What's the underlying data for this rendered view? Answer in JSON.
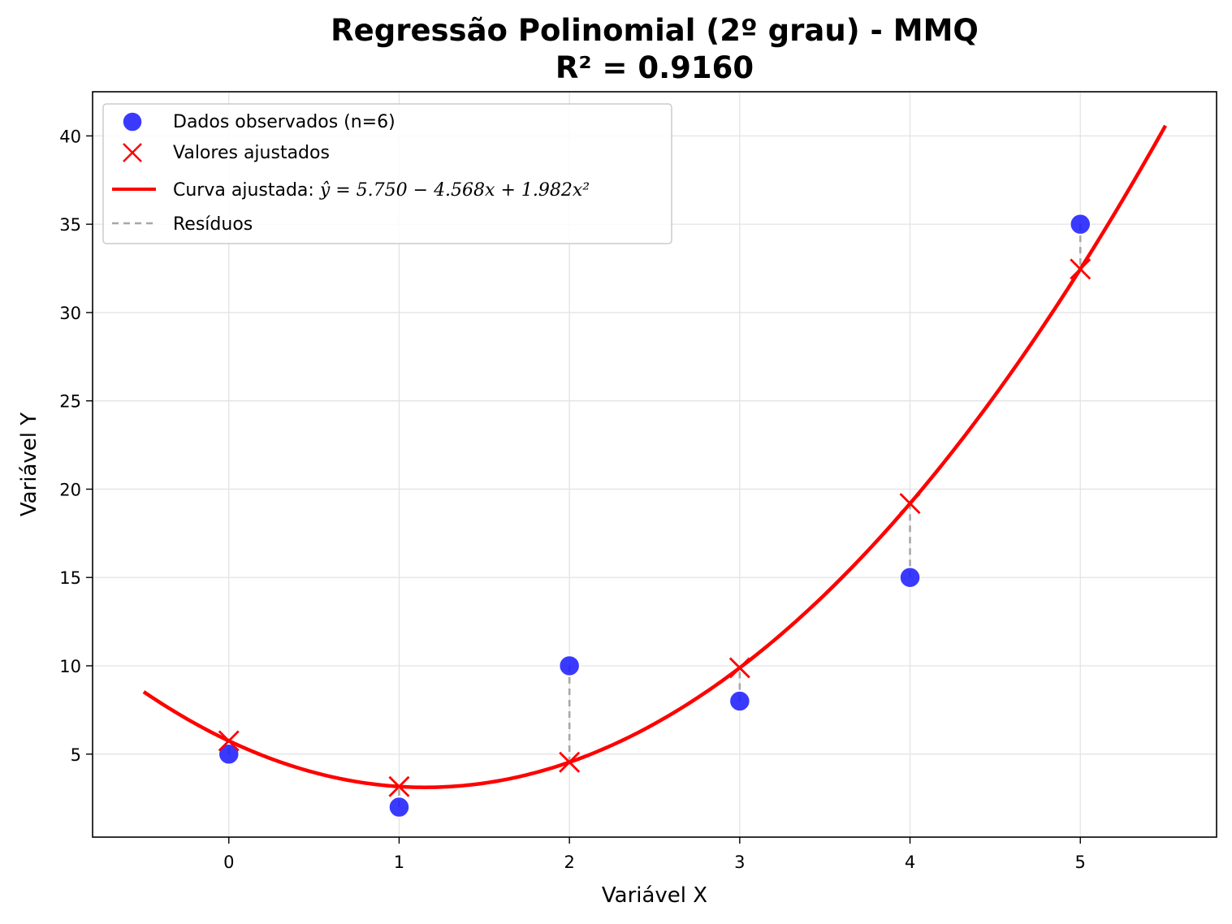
{
  "chart_data": {
    "type": "scatter",
    "title": "Regressão Polinomial (2º grau) - MMQ",
    "subtitle": "R² = 0.9160",
    "xlabel": "Variável X",
    "ylabel": "Variável Y",
    "xlim": [
      -0.8,
      5.8
    ],
    "ylim": [
      0.3,
      42.5
    ],
    "xticks": [
      0,
      1,
      2,
      3,
      4,
      5
    ],
    "yticks": [
      5,
      10,
      15,
      20,
      25,
      30,
      35,
      40
    ],
    "grid": true,
    "legend_position": "upper-left",
    "observed": {
      "name": "Dados observados (n=6)",
      "color": "#1f1fff",
      "x": [
        0,
        1,
        2,
        3,
        4,
        5
      ],
      "y": [
        5,
        2,
        10,
        8,
        15,
        35
      ]
    },
    "fitted": {
      "name": "Valores ajustados",
      "color": "#ff0000",
      "x": [
        0,
        1,
        2,
        3,
        4,
        5
      ],
      "y": [
        5.75,
        3.164,
        4.542,
        9.884,
        19.19,
        32.46
      ]
    },
    "curve": {
      "name_prefix": "Curva ajustada: ",
      "equation": "ŷ = 5.750 − 4.568x + 1.982x²",
      "color": "#ff0000",
      "coefficients": [
        5.75,
        -4.568,
        1.982
      ],
      "x_range": [
        -0.5,
        5.5
      ]
    },
    "residuals": {
      "name": "Resíduos",
      "color": "#a8a8a8"
    }
  }
}
